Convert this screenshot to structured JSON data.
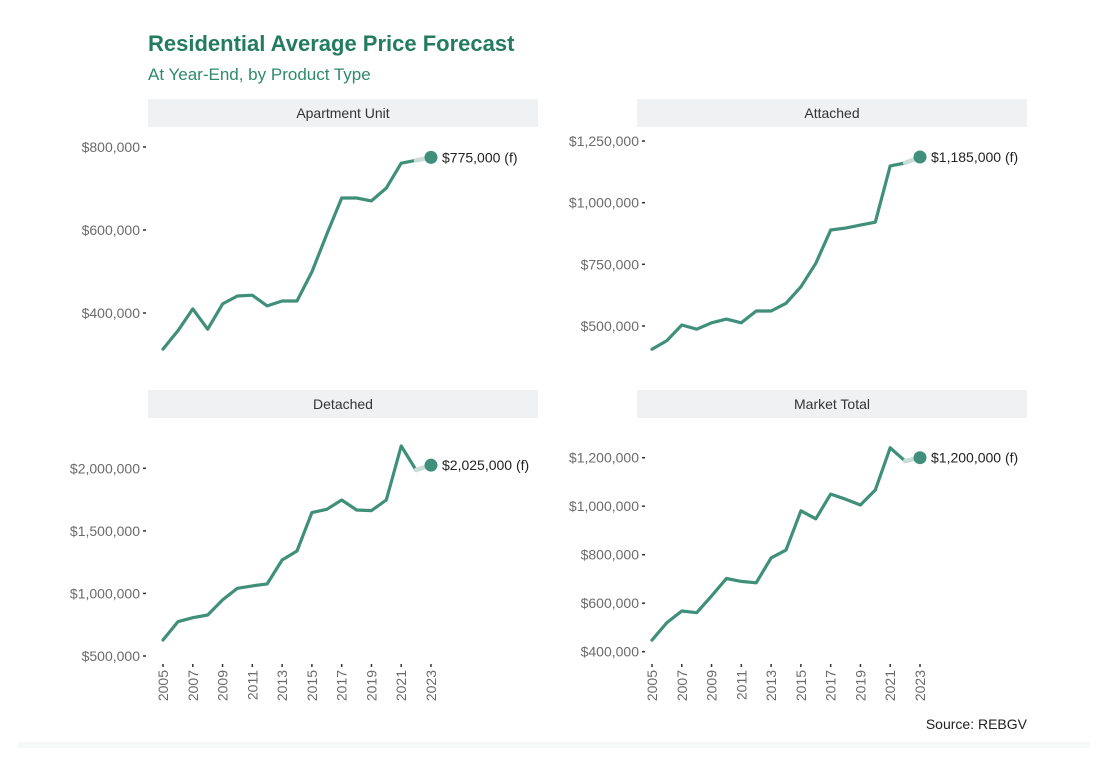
{
  "title": "Residential Average Price Forecast",
  "subtitle": "At Year-End, by Product Type",
  "source": "Source: REBGV",
  "colors": {
    "line": "#3f8f7a",
    "forecast_segment": "#c9dcd8",
    "point": "#3f8f7a",
    "strip_bg": "#eff1f2",
    "title": "#237b60"
  },
  "chart_data": {
    "type": "line",
    "layout": "facet 2x2",
    "x": [
      2005,
      2006,
      2007,
      2008,
      2009,
      2010,
      2011,
      2012,
      2013,
      2014,
      2015,
      2016,
      2017,
      2018,
      2019,
      2020,
      2021,
      2022,
      2023
    ],
    "x_ticks": [
      "2005",
      "2007",
      "2009",
      "2011",
      "2013",
      "2015",
      "2017",
      "2019",
      "2021",
      "2023"
    ],
    "forecast_year": 2023,
    "panels": [
      {
        "name": "Apartment Unit",
        "ylim": [
          300000,
          820000
        ],
        "y_ticks": [
          400000,
          600000,
          800000
        ],
        "y_tick_labels": [
          "$400,000",
          "$600,000",
          "$800,000"
        ],
        "values": [
          313000,
          357000,
          410000,
          361000,
          422000,
          441000,
          443000,
          417000,
          429000,
          429000,
          499000,
          590000,
          677000,
          677000,
          670000,
          701000,
          761000,
          768000,
          775000
        ],
        "annotation": "$775,000 (f)"
      },
      {
        "name": "Attached",
        "ylim": [
          390000,
          1270000
        ],
        "y_ticks": [
          500000,
          750000,
          1000000,
          1250000
        ],
        "y_tick_labels": [
          "$500,000",
          "$750,000",
          "$1,000,000",
          "$1,250,000"
        ],
        "values": [
          406000,
          441000,
          504000,
          487000,
          513000,
          528000,
          513000,
          561000,
          561000,
          592000,
          659000,
          754000,
          889000,
          897000,
          909000,
          921000,
          1149000,
          1161000,
          1185000
        ],
        "annotation": "$1,185,000 (f)"
      },
      {
        "name": "Detached",
        "ylim": [
          480000,
          2260000
        ],
        "y_ticks": [
          500000,
          1000000,
          1500000,
          2000000
        ],
        "y_tick_labels": [
          "$500,000",
          "$1,000,000",
          "$1,500,000",
          "$2,000,000"
        ],
        "values": [
          628000,
          774000,
          806000,
          828000,
          948000,
          1041000,
          1060000,
          1076000,
          1267000,
          1339000,
          1646000,
          1672000,
          1747000,
          1667000,
          1662000,
          1747000,
          2178000,
          1986000,
          2025000
        ],
        "annotation": "$2,025,000 (f)"
      },
      {
        "name": "Market Total",
        "ylim": [
          390000,
          1290000
        ],
        "y_ticks": [
          400000,
          600000,
          800000,
          1000000,
          1200000
        ],
        "y_tick_labels": [
          "$400,000",
          "$600,000",
          "$800,000",
          "$1,000,000",
          "$1,200,000"
        ],
        "values": [
          448000,
          520000,
          568000,
          561000,
          630000,
          702000,
          690000,
          684000,
          787000,
          819000,
          981000,
          948000,
          1050000,
          1029000,
          1005000,
          1067000,
          1241000,
          1186000,
          1200000
        ],
        "annotation": "$1,200,000 (f)"
      }
    ]
  }
}
